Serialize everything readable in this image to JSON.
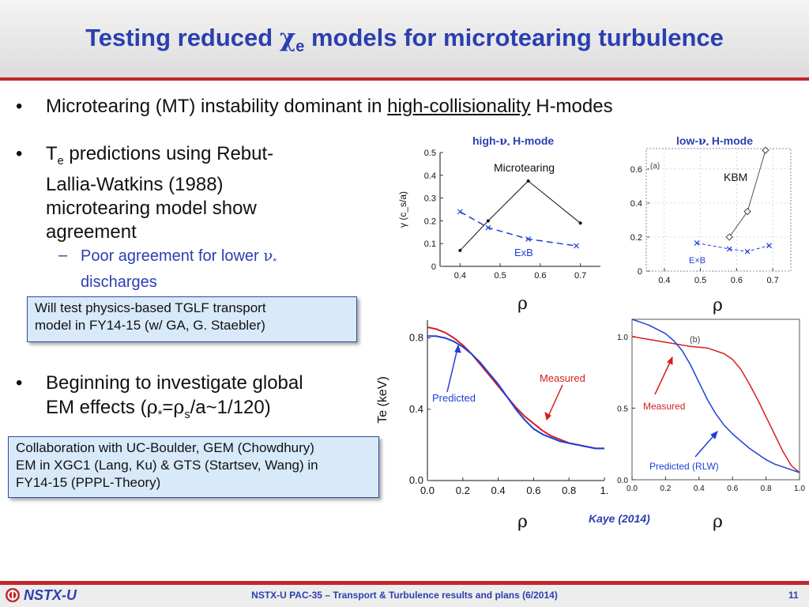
{
  "slide": {
    "title_part1": "Testing reduced ",
    "title_chi": "χ",
    "title_sub": "e",
    "title_part2": " models for microtearing turbulence"
  },
  "bullets": {
    "b1_pre": "Microtearing (MT) instability dominant in ",
    "b1_link": "high-collisionality",
    "b1_post": " H-modes",
    "b2_T": "T",
    "b2_sub": "e",
    "b2_rest": " predictions using Rebut-",
    "b2_line2": "Lallia-Watkins (1988)",
    "b2_line3": "microtearing model show",
    "b2_line4": "agreement",
    "sub1_line1": "Poor agreement for lower ",
    "sub1_nu": "ν",
    "sub1_star": "*",
    "sub1_line2": "discharges",
    "b3_line1": "Beginning to investigate global",
    "b3_line2_pre": "EM effects (",
    "b3_rho": "ρ",
    "b3_star": "*",
    "b3_eq": "=",
    "b3_rho2": "ρ",
    "b3_s": "s",
    "b3_post": "/a~1/120)"
  },
  "callouts": {
    "tglf_line1": "Will test physics-based TGLF transport",
    "tglf_line2": "model in FY14-15 (w/ GA, G. Staebler)",
    "collab_line1": "Collaboration with UC-Boulder, GEM (Chowdhury)",
    "collab_line2": "EM in XGC1 (Lang, Ku) & GTS (Startsev, Wang) in",
    "collab_line3": "FY14-15 (PPPL-Theory)"
  },
  "plot_titles": {
    "high_pre": "high-",
    "high_nu": "ν",
    "high_star": "*",
    "high_post": " H-mode",
    "low_pre": "low-",
    "low_nu": "ν",
    "low_star": "*",
    "low_post": " H-mode"
  },
  "rho_label": "ρ",
  "citation": "Kaye (2014)",
  "footer": {
    "logo": "NSTX-U",
    "text": "NSTX-U PAC-35 – Transport & Turbulence results and plans (6/2014)",
    "page": "11"
  },
  "colors": {
    "title_blue": "#2b3fb0",
    "accent_red": "#c1272d",
    "callout_fill": "#d8e9f9",
    "series_blue": "#1f3fd6",
    "series_red": "#d42020"
  },
  "chart_data": [
    {
      "type": "line",
      "title": "high-ν* H-mode",
      "ylabel": "γ (c_s/a)",
      "xlabel": "ρ",
      "xlim": [
        0.35,
        0.75
      ],
      "ylim": [
        0,
        0.5
      ],
      "xticks": [
        "0.4",
        "0.5",
        "0.6",
        "0.7"
      ],
      "yticks": [
        "0",
        "0.1",
        "0.2",
        "0.3",
        "0.4",
        "0.5"
      ],
      "annotations": [
        "Microtearing",
        "ExB"
      ],
      "series": [
        {
          "name": "Microtearing",
          "x": [
            0.4,
            0.47,
            0.57,
            0.7
          ],
          "y": [
            0.07,
            0.2,
            0.375,
            0.19
          ]
        },
        {
          "name": "ExB",
          "x": [
            0.4,
            0.47,
            0.57,
            0.69
          ],
          "y": [
            0.24,
            0.17,
            0.12,
            0.09
          ]
        }
      ]
    },
    {
      "type": "line",
      "title": "low-ν* H-mode",
      "xlabel": "ρ",
      "xlim": [
        0.35,
        0.75
      ],
      "ylim": [
        0,
        0.72
      ],
      "xticks": [
        "0.4",
        "0.5",
        "0.6",
        "0.7"
      ],
      "yticks": [
        "0",
        "0.2",
        "0.4",
        "0.6"
      ],
      "panel_label": "(a)",
      "annotations": [
        "KBM",
        "E×B"
      ],
      "series": [
        {
          "name": "KBM",
          "x": [
            0.58,
            0.63,
            0.68
          ],
          "y": [
            0.2,
            0.35,
            0.71
          ]
        },
        {
          "name": "E×B",
          "x": [
            0.49,
            0.58,
            0.63,
            0.69
          ],
          "y": [
            0.165,
            0.13,
            0.115,
            0.15
          ]
        }
      ]
    },
    {
      "type": "line",
      "ylabel": "Te (keV)",
      "xlabel": "ρ",
      "xlim": [
        0,
        1.0
      ],
      "ylim": [
        0,
        0.9
      ],
      "xticks": [
        "0.0",
        "0.2",
        "0.4",
        "0.6",
        "0.8",
        "1."
      ],
      "yticks": [
        "0.0",
        "0.4",
        "0.8"
      ],
      "annotations": [
        "Measured",
        "Predicted"
      ],
      "series": [
        {
          "name": "Measured",
          "x": [
            0.0,
            0.05,
            0.1,
            0.15,
            0.2,
            0.25,
            0.3,
            0.35,
            0.4,
            0.45,
            0.5,
            0.55,
            0.6,
            0.65,
            0.7,
            0.75,
            0.8,
            0.85,
            0.9,
            0.95,
            1.0
          ],
          "y": [
            0.86,
            0.85,
            0.83,
            0.8,
            0.76,
            0.71,
            0.65,
            0.59,
            0.53,
            0.47,
            0.41,
            0.36,
            0.32,
            0.28,
            0.25,
            0.23,
            0.21,
            0.2,
            0.19,
            0.18,
            0.18
          ]
        },
        {
          "name": "Predicted",
          "x": [
            0.0,
            0.05,
            0.1,
            0.15,
            0.2,
            0.25,
            0.3,
            0.35,
            0.4,
            0.45,
            0.5,
            0.55,
            0.6,
            0.65,
            0.7,
            0.75,
            0.8,
            0.85,
            0.9,
            0.95,
            1.0
          ],
          "y": [
            0.81,
            0.81,
            0.8,
            0.78,
            0.75,
            0.71,
            0.66,
            0.6,
            0.54,
            0.47,
            0.4,
            0.34,
            0.29,
            0.26,
            0.24,
            0.22,
            0.21,
            0.2,
            0.19,
            0.18,
            0.18
          ]
        }
      ]
    },
    {
      "type": "line",
      "xlabel": "ρ",
      "xlim": [
        0,
        1.0
      ],
      "ylim": [
        0,
        1.12
      ],
      "xticks": [
        "0.0",
        "0.2",
        "0.4",
        "0.6",
        "0.8",
        "1.0"
      ],
      "yticks": [
        "0.0",
        "0.5",
        "1.0"
      ],
      "panel_label": "(b)",
      "annotations": [
        "Measured",
        "Predicted (RLW)"
      ],
      "series": [
        {
          "name": "Measured",
          "x": [
            0.0,
            0.05,
            0.1,
            0.15,
            0.2,
            0.25,
            0.3,
            0.35,
            0.4,
            0.45,
            0.5,
            0.55,
            0.6,
            0.65,
            0.7,
            0.75,
            0.8,
            0.85,
            0.9,
            0.95,
            1.0
          ],
          "y": [
            1.0,
            0.99,
            0.98,
            0.97,
            0.96,
            0.95,
            0.94,
            0.93,
            0.925,
            0.92,
            0.9,
            0.88,
            0.84,
            0.77,
            0.67,
            0.56,
            0.44,
            0.32,
            0.2,
            0.1,
            0.05
          ]
        },
        {
          "name": "Predicted (RLW)",
          "x": [
            0.0,
            0.05,
            0.1,
            0.15,
            0.2,
            0.25,
            0.3,
            0.35,
            0.4,
            0.45,
            0.5,
            0.55,
            0.6,
            0.65,
            0.7,
            0.75,
            0.8,
            0.85,
            0.9,
            0.95,
            1.0
          ],
          "y": [
            1.12,
            1.1,
            1.08,
            1.05,
            1.02,
            0.97,
            0.9,
            0.8,
            0.68,
            0.56,
            0.46,
            0.38,
            0.32,
            0.27,
            0.22,
            0.18,
            0.14,
            0.11,
            0.09,
            0.07,
            0.05
          ]
        }
      ]
    }
  ]
}
